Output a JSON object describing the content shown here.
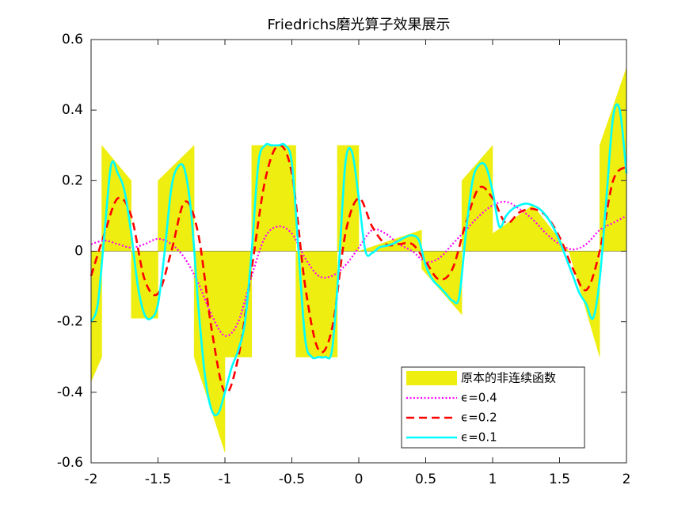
{
  "chart_data": {
    "type": "line",
    "title": "Friedrichs磨光算子效果展示",
    "xlim": [
      -2,
      2
    ],
    "ylim": [
      -0.6,
      0.6
    ],
    "xticks": [
      -2,
      -1.5,
      -1,
      -0.5,
      0,
      0.5,
      1,
      1.5,
      2
    ],
    "yticks": [
      -0.6,
      -0.4,
      -0.2,
      0,
      0.2,
      0.4,
      0.6
    ],
    "legend": "lower right",
    "area": {
      "name": "原本的非连续函数",
      "color": "#eeee10",
      "x": [
        -2,
        -1.92,
        -1.92,
        -1.7,
        -1.7,
        -1.5,
        -1.5,
        -1.23,
        -1.23,
        -1.0,
        -1.0,
        -0.8,
        -0.8,
        -0.47,
        -0.47,
        -0.16,
        -0.16,
        0,
        0,
        0.47,
        0.47,
        0.77,
        0.77,
        1.0,
        1.0,
        1.3,
        1.57,
        1.8,
        1.8,
        2
      ],
      "y": [
        -0.37,
        -0.3,
        0.3,
        0.2,
        -0.19,
        -0.19,
        0.2,
        0.3,
        -0.3,
        -0.57,
        -0.3,
        -0.3,
        0.3,
        0.3,
        -0.3,
        -0.3,
        0.3,
        0.3,
        0,
        0.06,
        -0.05,
        -0.18,
        0.2,
        0.3,
        0.05,
        0.13,
        0.0,
        -0.3,
        0.3,
        0.52
      ]
    },
    "series": [
      {
        "name": "ϵ=0.4",
        "color": "#ff00ff",
        "style": "dotted",
        "x": [
          -2,
          -1.9,
          -1.8,
          -1.7,
          -1.6,
          -1.5,
          -1.4,
          -1.3,
          -1.2,
          -1.1,
          -1,
          -0.9,
          -0.8,
          -0.7,
          -0.6,
          -0.5,
          -0.4,
          -0.3,
          -0.2,
          -0.1,
          0,
          0.1,
          0.2,
          0.3,
          0.4,
          0.5,
          0.6,
          0.7,
          0.8,
          0.9,
          1,
          1.1,
          1.2,
          1.3,
          1.4,
          1.5,
          1.6,
          1.7,
          1.8,
          1.9,
          2
        ],
        "values": [
          0.02,
          0.03,
          0.02,
          0.01,
          0.02,
          0.035,
          0.02,
          -0.02,
          -0.09,
          -0.18,
          -0.24,
          -0.2,
          -0.07,
          0.04,
          0.07,
          0.05,
          -0.02,
          -0.07,
          -0.07,
          -0.04,
          0.01,
          0.06,
          0.05,
          0.02,
          0.0,
          -0.03,
          -0.02,
          0.02,
          0.06,
          0.1,
          0.13,
          0.14,
          0.12,
          0.09,
          0.05,
          0.02,
          0.005,
          0.02,
          0.06,
          0.08,
          0.1
        ]
      },
      {
        "name": "ϵ=0.2",
        "color": "#ff0000",
        "style": "dashed",
        "x": [
          -2,
          -1.9,
          -1.8,
          -1.7,
          -1.6,
          -1.5,
          -1.4,
          -1.3,
          -1.2,
          -1.1,
          -1,
          -0.9,
          -0.8,
          -0.7,
          -0.6,
          -0.5,
          -0.4,
          -0.3,
          -0.2,
          -0.1,
          0,
          0.1,
          0.2,
          0.3,
          0.4,
          0.5,
          0.6,
          0.7,
          0.8,
          0.9,
          1,
          1.1,
          1.2,
          1.3,
          1.4,
          1.5,
          1.6,
          1.7,
          1.8,
          1.9,
          2
        ],
        "values": [
          -0.07,
          0.05,
          0.15,
          0.1,
          -0.08,
          -0.12,
          0.0,
          0.14,
          0.05,
          -0.22,
          -0.4,
          -0.3,
          -0.05,
          0.2,
          0.3,
          0.22,
          -0.1,
          -0.28,
          -0.22,
          0.05,
          0.15,
          0.07,
          0.02,
          0.02,
          0.02,
          -0.03,
          -0.08,
          -0.05,
          0.08,
          0.18,
          0.15,
          0.08,
          0.11,
          0.12,
          0.1,
          0.04,
          -0.05,
          -0.11,
          0.0,
          0.2,
          0.24
        ]
      },
      {
        "name": "ϵ=0.1",
        "color": "#00ffff",
        "style": "solid",
        "x": [
          -2,
          -1.95,
          -1.9,
          -1.85,
          -1.8,
          -1.75,
          -1.7,
          -1.65,
          -1.6,
          -1.55,
          -1.5,
          -1.45,
          -1.4,
          -1.35,
          -1.3,
          -1.25,
          -1.2,
          -1.15,
          -1.1,
          -1.05,
          -1,
          -0.95,
          -0.9,
          -0.85,
          -0.8,
          -0.75,
          -0.7,
          -0.65,
          -0.6,
          -0.55,
          -0.5,
          -0.45,
          -0.4,
          -0.35,
          -0.3,
          -0.25,
          -0.2,
          -0.15,
          -0.1,
          -0.05,
          0,
          0.05,
          0.1,
          0.15,
          0.2,
          0.25,
          0.3,
          0.35,
          0.4,
          0.45,
          0.5,
          0.55,
          0.6,
          0.65,
          0.7,
          0.75,
          0.8,
          0.85,
          0.9,
          0.95,
          1,
          1.05,
          1.1,
          1.15,
          1.2,
          1.25,
          1.3,
          1.35,
          1.4,
          1.45,
          1.5,
          1.55,
          1.6,
          1.65,
          1.7,
          1.75,
          1.8,
          1.85,
          1.9,
          1.95,
          2
        ],
        "values": [
          -0.2,
          -0.15,
          0.05,
          0.245,
          0.22,
          0.17,
          0.05,
          -0.1,
          -0.18,
          -0.19,
          -0.15,
          0,
          0.18,
          0.24,
          0.23,
          0.1,
          -0.15,
          -0.35,
          -0.45,
          -0.46,
          -0.4,
          -0.33,
          -0.28,
          -0.2,
          0,
          0.25,
          0.3,
          0.3,
          0.3,
          0.3,
          0.25,
          0,
          -0.25,
          -0.3,
          -0.3,
          -0.3,
          -0.28,
          -0.05,
          0.25,
          0.28,
          0.15,
          0,
          -0.005,
          0.01,
          0.015,
          0.02,
          0.03,
          0.04,
          0.045,
          0.03,
          -0.04,
          -0.08,
          -0.1,
          -0.12,
          -0.14,
          -0.13,
          0.05,
          0.2,
          0.245,
          0.24,
          0.17,
          0.07,
          0.1,
          0.12,
          0.13,
          0.135,
          0.13,
          0.12,
          0.1,
          0.07,
          0.03,
          -0.02,
          -0.07,
          -0.12,
          -0.15,
          -0.19,
          -0.08,
          0.15,
          0.38,
          0.4,
          0.22
        ]
      }
    ]
  }
}
